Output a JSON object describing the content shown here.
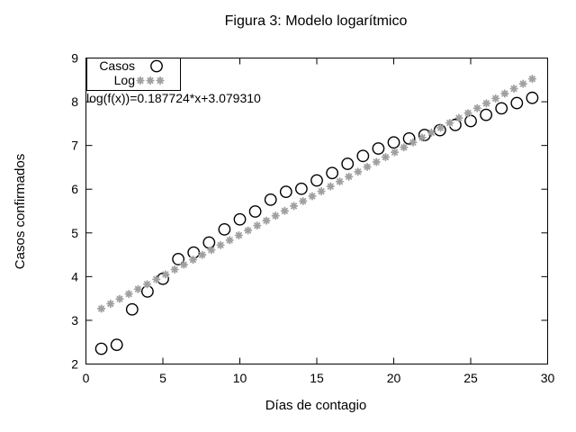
{
  "page": {
    "background": "#ffffff"
  },
  "chart_data": {
    "type": "scatter",
    "title": "Figura 3: Modelo logarítmico",
    "xlabel": "Días de contagio",
    "ylabel": "Casos confirmados",
    "xlim": [
      0,
      30
    ],
    "ylim": [
      2,
      9
    ],
    "xticks": [
      0,
      5,
      10,
      15,
      20,
      25,
      30
    ],
    "yticks": [
      2,
      3,
      4,
      5,
      6,
      7,
      8,
      9
    ],
    "grid": false,
    "annotation": "log(f(x))=0.187724*x+3.079310",
    "legend": {
      "position": "top-left",
      "entries": [
        "Casos",
        "Log"
      ]
    },
    "series": [
      {
        "name": "Casos",
        "type": "points",
        "marker": "open-circle",
        "color": "#000000",
        "x": [
          1,
          2,
          3,
          4,
          5,
          6,
          7,
          8,
          9,
          10,
          11,
          12,
          13,
          14,
          15,
          16,
          17,
          18,
          19,
          20,
          21,
          22,
          23,
          24,
          25,
          26,
          27,
          28,
          29
        ],
        "y": [
          2.35,
          2.44,
          3.25,
          3.66,
          3.95,
          4.4,
          4.55,
          4.78,
          5.08,
          5.31,
          5.49,
          5.76,
          5.94,
          6.01,
          6.2,
          6.37,
          6.58,
          6.76,
          6.93,
          7.07,
          7.16,
          7.24,
          7.35,
          7.47,
          7.56,
          7.7,
          7.85,
          7.97,
          8.09
        ]
      },
      {
        "name": "Log",
        "type": "function-points",
        "marker": "asterisk",
        "color": "#a0a0a0",
        "model": {
          "slope": 0.187724,
          "intercept": 3.07931,
          "x_start": 1,
          "x_end": 29,
          "samples": 48
        }
      }
    ]
  }
}
